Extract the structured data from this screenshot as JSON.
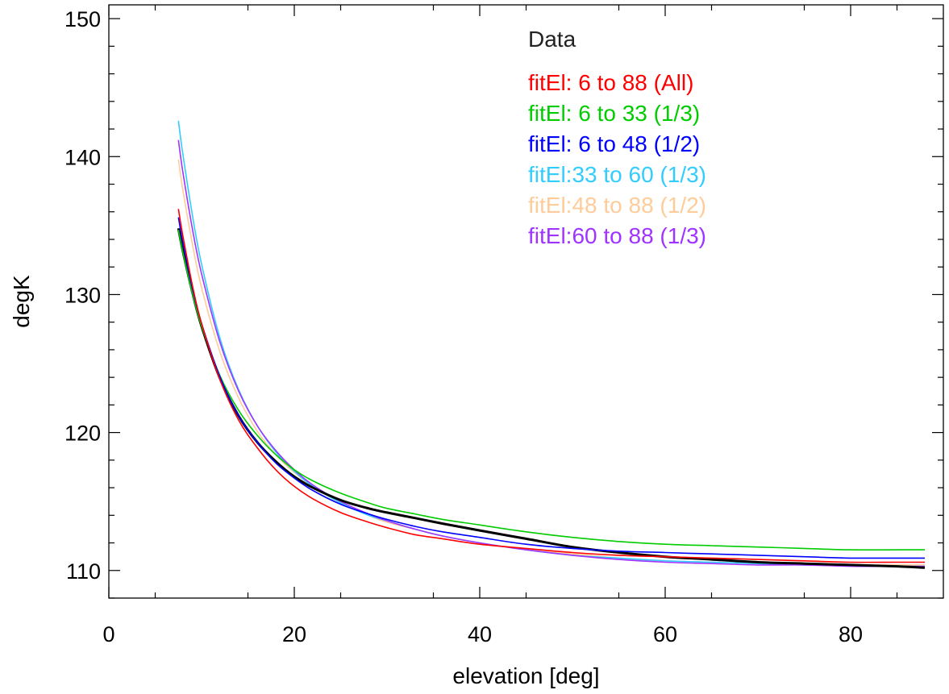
{
  "chart_data": {
    "type": "line",
    "title": "",
    "xlabel": "elevation [deg]",
    "ylabel": "degK",
    "xlim": [
      0,
      90
    ],
    "ylim": [
      108,
      151
    ],
    "x_ticks": [
      0,
      20,
      40,
      60,
      80
    ],
    "y_ticks": [
      110,
      120,
      130,
      140,
      150
    ],
    "x_tick_labels": [
      "0",
      "20",
      "40",
      "60",
      "80"
    ],
    "y_tick_labels": [
      "110",
      "120",
      "130",
      "140",
      "150"
    ],
    "grid": false,
    "legend_position": "top-right",
    "series": [
      {
        "name": "Data",
        "color": "#000000",
        "x": [
          7.5,
          8,
          9,
          10,
          12,
          14,
          16,
          18,
          20,
          22,
          25,
          28,
          30,
          33,
          36,
          40,
          45,
          50,
          55,
          60,
          65,
          70,
          75,
          80,
          85,
          88
        ],
        "y": [
          134.8,
          133.1,
          130.2,
          127.7,
          123.9,
          121.2,
          119.3,
          117.9,
          116.8,
          116.0,
          115.1,
          114.5,
          114.2,
          113.8,
          113.4,
          112.9,
          112.3,
          111.7,
          111.3,
          111.0,
          110.8,
          110.6,
          110.5,
          110.4,
          110.3,
          110.2
        ]
      },
      {
        "name": "fitEl: 6 to 88 (All)",
        "color": "#ff0000",
        "x": [
          7.5,
          8,
          9,
          10,
          12,
          14,
          16,
          18,
          20,
          22,
          25,
          28,
          30,
          33,
          36,
          40,
          45,
          50,
          55,
          60,
          65,
          70,
          75,
          80,
          85,
          88
        ],
        "y": [
          136.2,
          134.2,
          130.7,
          127.9,
          123.8,
          120.9,
          118.9,
          117.3,
          116.1,
          115.2,
          114.2,
          113.5,
          113.1,
          112.6,
          112.3,
          111.9,
          111.6,
          111.3,
          111.1,
          111.0,
          110.9,
          110.8,
          110.7,
          110.6,
          110.6,
          110.6
        ]
      },
      {
        "name": "fitEl: 6 to 33 (1/3)",
        "color": "#00cc00",
        "x": [
          7.5,
          8,
          9,
          10,
          12,
          14,
          16,
          18,
          20,
          22,
          25,
          28,
          30,
          33,
          36,
          40,
          45,
          50,
          55,
          60,
          65,
          70,
          75,
          80,
          85,
          88
        ],
        "y": [
          134.7,
          133.0,
          130.1,
          127.7,
          124.1,
          121.6,
          119.8,
          118.4,
          117.3,
          116.5,
          115.6,
          114.9,
          114.5,
          114.1,
          113.7,
          113.3,
          112.8,
          112.4,
          112.1,
          111.9,
          111.8,
          111.7,
          111.6,
          111.5,
          111.5,
          111.5
        ]
      },
      {
        "name": "fitEl: 6 to 48 (1/2)",
        "color": "#0000ff",
        "x": [
          7.5,
          8,
          9,
          10,
          12,
          14,
          16,
          18,
          20,
          22,
          25,
          28,
          30,
          33,
          36,
          40,
          45,
          50,
          55,
          60,
          65,
          70,
          75,
          80,
          85,
          88
        ],
        "y": [
          135.6,
          133.7,
          130.5,
          127.9,
          124.0,
          121.2,
          119.3,
          117.8,
          116.7,
          115.8,
          114.8,
          114.1,
          113.7,
          113.2,
          112.8,
          112.4,
          111.9,
          111.6,
          111.4,
          111.3,
          111.2,
          111.1,
          111.0,
          110.9,
          110.9,
          110.9
        ]
      },
      {
        "name": "fitEl:33 to 60 (1/3)",
        "color": "#33ccff",
        "x": [
          7.5,
          8,
          9,
          10,
          12,
          14,
          16,
          18,
          20,
          22,
          25,
          28,
          30,
          33,
          36,
          40,
          45,
          50,
          55,
          60,
          65,
          70,
          75,
          80,
          85,
          88
        ],
        "y": [
          142.6,
          140.1,
          135.8,
          132.2,
          126.8,
          123.1,
          120.5,
          118.6,
          117.2,
          116.1,
          114.9,
          114.0,
          113.6,
          113.0,
          112.5,
          112.0,
          111.5,
          111.1,
          110.9,
          110.7,
          110.6,
          110.5,
          110.4,
          110.4,
          110.3,
          110.3
        ]
      },
      {
        "name": "fitEl:48 to 88 (1/2)",
        "color": "#ffcc99",
        "x": [
          7.5,
          8,
          9,
          10,
          12,
          14,
          16,
          18,
          20,
          22,
          25,
          28,
          30,
          33,
          36,
          40,
          45,
          50,
          55,
          60,
          65,
          70,
          75,
          80,
          85,
          88
        ],
        "y": [
          139.8,
          137.5,
          133.7,
          130.5,
          125.8,
          122.5,
          120.1,
          118.4,
          117.1,
          116.1,
          114.9,
          114.0,
          113.5,
          113.0,
          112.5,
          112.0,
          111.5,
          111.2,
          110.9,
          110.7,
          110.6,
          110.5,
          110.5,
          110.4,
          110.4,
          110.4
        ]
      },
      {
        "name": "fitEl:60 to 88 (1/3)",
        "color": "#a033ff",
        "x": [
          7.5,
          8,
          9,
          10,
          12,
          14,
          16,
          18,
          20,
          22,
          25,
          28,
          30,
          33,
          36,
          40,
          45,
          50,
          55,
          60,
          65,
          70,
          75,
          80,
          85,
          88
        ],
        "y": [
          141.2,
          138.8,
          134.8,
          131.5,
          126.5,
          123.0,
          120.5,
          118.7,
          117.3,
          116.2,
          115.0,
          114.1,
          113.6,
          113.0,
          112.5,
          112.0,
          111.5,
          111.1,
          110.8,
          110.6,
          110.5,
          110.4,
          110.4,
          110.3,
          110.3,
          110.3
        ]
      }
    ]
  }
}
